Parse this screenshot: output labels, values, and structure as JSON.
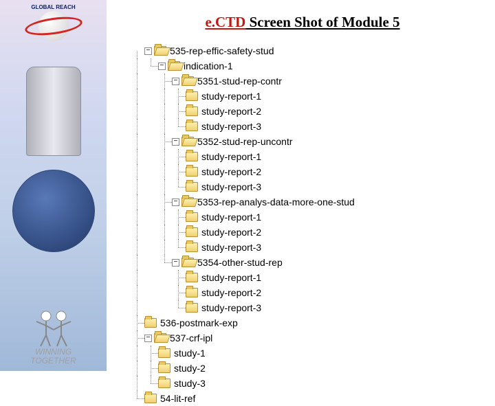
{
  "title": {
    "prefix": "e.CTD",
    "mid": " Screen Shot of ",
    "suffix": "Module 5"
  },
  "sidebar": {
    "logo_top_text": "GLOBAL REACH",
    "footer_line1": "WINNING",
    "footer_line2": "TOGETHER"
  },
  "tree": [
    {
      "depth": 0,
      "conns": [
        "half-down"
      ],
      "toggle": "−",
      "open": true,
      "label": "535-rep-effic-safety-stud"
    },
    {
      "depth": 1,
      "conns": [
        "vert",
        "end"
      ],
      "toggle": "−",
      "open": true,
      "label": "indication-1"
    },
    {
      "depth": 2,
      "conns": [
        "vert",
        "blank",
        "tee"
      ],
      "toggle": "−",
      "open": true,
      "label": "5351-stud-rep-contr"
    },
    {
      "depth": 3,
      "conns": [
        "vert",
        "blank",
        "vert",
        "tee"
      ],
      "open": false,
      "label": "study-report-1"
    },
    {
      "depth": 3,
      "conns": [
        "vert",
        "blank",
        "vert",
        "tee"
      ],
      "open": false,
      "label": "study-report-2"
    },
    {
      "depth": 3,
      "conns": [
        "vert",
        "blank",
        "vert",
        "end"
      ],
      "open": false,
      "label": "study-report-3"
    },
    {
      "depth": 2,
      "conns": [
        "vert",
        "blank",
        "tee"
      ],
      "toggle": "−",
      "open": true,
      "label": "5352-stud-rep-uncontr"
    },
    {
      "depth": 3,
      "conns": [
        "vert",
        "blank",
        "vert",
        "tee"
      ],
      "open": false,
      "label": "study-report-1"
    },
    {
      "depth": 3,
      "conns": [
        "vert",
        "blank",
        "vert",
        "tee"
      ],
      "open": false,
      "label": "study-report-2"
    },
    {
      "depth": 3,
      "conns": [
        "vert",
        "blank",
        "vert",
        "end"
      ],
      "open": false,
      "label": "study-report-3"
    },
    {
      "depth": 2,
      "conns": [
        "vert",
        "blank",
        "tee"
      ],
      "toggle": "−",
      "open": true,
      "label": "5353-rep-analys-data-more-one-stud"
    },
    {
      "depth": 3,
      "conns": [
        "vert",
        "blank",
        "vert",
        "tee"
      ],
      "open": false,
      "label": "study-report-1"
    },
    {
      "depth": 3,
      "conns": [
        "vert",
        "blank",
        "vert",
        "tee"
      ],
      "open": false,
      "label": "study-report-2"
    },
    {
      "depth": 3,
      "conns": [
        "vert",
        "blank",
        "vert",
        "end"
      ],
      "open": false,
      "label": "study-report-3"
    },
    {
      "depth": 2,
      "conns": [
        "vert",
        "blank",
        "end"
      ],
      "toggle": "−",
      "open": true,
      "label": "5354-other-stud-rep"
    },
    {
      "depth": 3,
      "conns": [
        "vert",
        "blank",
        "blank",
        "tee"
      ],
      "open": false,
      "label": "study-report-1"
    },
    {
      "depth": 3,
      "conns": [
        "vert",
        "blank",
        "blank",
        "tee"
      ],
      "open": false,
      "label": "study-report-2"
    },
    {
      "depth": 3,
      "conns": [
        "vert",
        "blank",
        "blank",
        "end"
      ],
      "open": false,
      "label": "study-report-3"
    },
    {
      "depth": 0,
      "conns": [
        "tee"
      ],
      "open": false,
      "label": "536-postmark-exp"
    },
    {
      "depth": 0,
      "conns": [
        "tee"
      ],
      "toggle": "−",
      "open": true,
      "label": "537-crf-ipl"
    },
    {
      "depth": 1,
      "conns": [
        "vert",
        "tee"
      ],
      "open": false,
      "label": "study-1"
    },
    {
      "depth": 1,
      "conns": [
        "vert",
        "tee"
      ],
      "open": false,
      "label": "study-2"
    },
    {
      "depth": 1,
      "conns": [
        "vert",
        "end"
      ],
      "open": false,
      "label": "study-3"
    },
    {
      "depth": 0,
      "conns": [
        "end"
      ],
      "open": false,
      "label": "54-lit-ref"
    }
  ]
}
